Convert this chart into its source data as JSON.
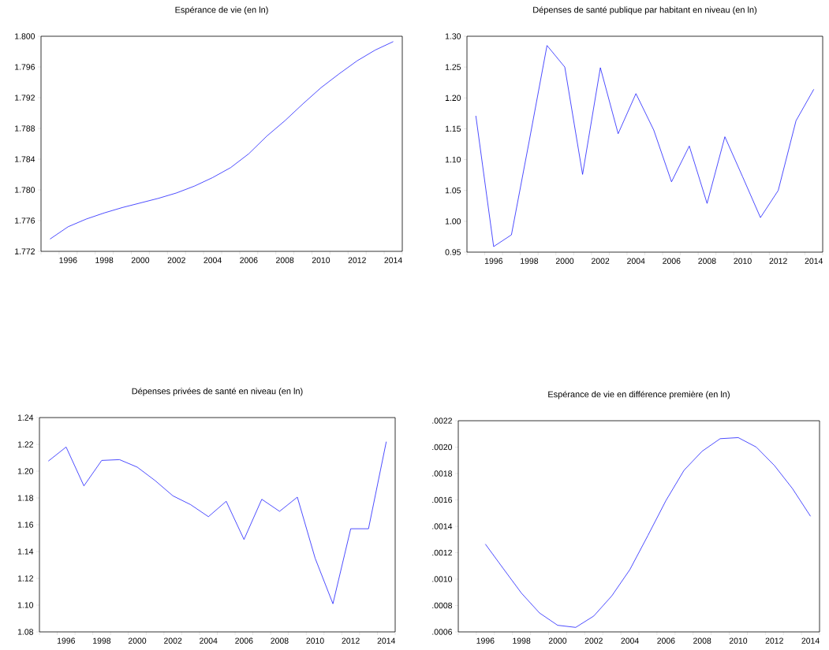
{
  "chart_data": [
    {
      "type": "line",
      "title": "Espérance de vie (en ln)",
      "color": "#0000ff",
      "x": [
        1995,
        1996,
        1997,
        1998,
        1999,
        2000,
        2001,
        2002,
        2003,
        2004,
        2005,
        2006,
        2007,
        2008,
        2009,
        2010,
        2011,
        2012,
        2013,
        2014
      ],
      "values": [
        1.7736,
        1.7752,
        1.7762,
        1.777,
        1.7777,
        1.7783,
        1.7789,
        1.7796,
        1.7805,
        1.7816,
        1.7829,
        1.7847,
        1.787,
        1.789,
        1.7912,
        1.7933,
        1.7951,
        1.7968,
        1.7982,
        1.7993
      ],
      "xlim": [
        1994.5,
        2014.5
      ],
      "ylim": [
        1.772,
        1.8
      ],
      "xticks": [
        1996,
        1998,
        2000,
        2002,
        2004,
        2006,
        2008,
        2010,
        2012,
        2014,
        {
          "value": 1994.5,
          "label": null
        },
        {
          "value": 1995.5,
          "label": null
        },
        {
          "value": 1996.5,
          "label": null
        },
        {
          "value": 1997.5,
          "label": null
        },
        {
          "value": 1998.5,
          "label": null
        },
        {
          "value": 1999.5,
          "label": null
        },
        {
          "value": 2000.5,
          "label": null
        },
        {
          "value": 2001.5,
          "label": null
        },
        {
          "value": 2002.5,
          "label": null
        },
        {
          "value": 2003.5,
          "label": null
        },
        {
          "value": 2004.5,
          "label": null
        },
        {
          "value": 2005.5,
          "label": null
        },
        {
          "value": 2006.5,
          "label": null
        },
        {
          "value": 2007.5,
          "label": null
        },
        {
          "value": 2008.5,
          "label": null
        },
        {
          "value": 2009.5,
          "label": null
        },
        {
          "value": 2010.5,
          "label": null
        },
        {
          "value": 2011.5,
          "label": null
        },
        {
          "value": 2012.5,
          "label": null
        },
        {
          "value": 2013.5,
          "label": null
        },
        {
          "value": 2014.5,
          "label": null
        }
      ],
      "yticks": [
        1.772,
        1.776,
        {
          "value": 1.78,
          "label": "1.780"
        },
        1.784,
        1.788,
        1.792,
        1.796,
        {
          "value": 1.8,
          "label": "1.800"
        }
      ]
    },
    {
      "type": "line",
      "title": "Dépenses de santé publique par habitant en niveau (en ln)",
      "color": "#0000ff",
      "x": [
        1995,
        1996,
        1997,
        1998,
        1999,
        2000,
        2001,
        2002,
        2003,
        2004,
        2005,
        2006,
        2007,
        2008,
        2009,
        2010,
        2011,
        2012,
        2013,
        2014
      ],
      "values": [
        1.171,
        0.959,
        0.978,
        1.13,
        1.285,
        1.25,
        1.076,
        1.249,
        1.142,
        1.207,
        1.148,
        1.064,
        1.122,
        1.029,
        1.137,
        1.072,
        1.006,
        1.05,
        1.163,
        1.214
      ],
      "xlim": [
        1994.5,
        2014.5
      ],
      "ylim": [
        0.95,
        1.3
      ],
      "xticks": [
        1996,
        1998,
        2000,
        2002,
        2004,
        2006,
        2008,
        2010,
        2012,
        2014,
        {
          "value": 1994.5,
          "label": null
        },
        {
          "value": 1995.5,
          "label": null
        },
        {
          "value": 1996.5,
          "label": null
        },
        {
          "value": 1997.5,
          "label": null
        },
        {
          "value": 1998.5,
          "label": null
        },
        {
          "value": 1999.5,
          "label": null
        },
        {
          "value": 2000.5,
          "label": null
        },
        {
          "value": 2001.5,
          "label": null
        },
        {
          "value": 2002.5,
          "label": null
        },
        {
          "value": 2003.5,
          "label": null
        },
        {
          "value": 2004.5,
          "label": null
        },
        {
          "value": 2005.5,
          "label": null
        },
        {
          "value": 2006.5,
          "label": null
        },
        {
          "value": 2007.5,
          "label": null
        },
        {
          "value": 2008.5,
          "label": null
        },
        {
          "value": 2009.5,
          "label": null
        },
        {
          "value": 2010.5,
          "label": null
        },
        {
          "value": 2011.5,
          "label": null
        },
        {
          "value": 2012.5,
          "label": null
        },
        {
          "value": 2013.5,
          "label": null
        },
        {
          "value": 2014.5,
          "label": null
        }
      ],
      "yticks": [
        0.95,
        {
          "value": 1.0,
          "label": "1.00"
        },
        1.05,
        {
          "value": 1.1,
          "label": "1.10"
        },
        1.15,
        {
          "value": 1.2,
          "label": "1.20"
        },
        1.25,
        {
          "value": 1.3,
          "label": "1.30"
        }
      ]
    },
    {
      "type": "line",
      "title": "Dépenses privées de santé en niveau (en ln)",
      "color": "#0000ff",
      "x": [
        1995,
        1996,
        1997,
        1998,
        1999,
        2000,
        2001,
        2002,
        2003,
        2004,
        2005,
        2006,
        2007,
        2008,
        2009,
        2010,
        2011,
        2012,
        2013,
        2014
      ],
      "values": [
        1.2075,
        1.218,
        1.189,
        1.208,
        1.2086,
        1.203,
        1.193,
        1.1816,
        1.175,
        1.166,
        1.1775,
        1.149,
        1.179,
        1.17,
        1.1806,
        1.135,
        1.101,
        1.157,
        1.157,
        1.222
      ],
      "xlim": [
        1994.5,
        2014.5
      ],
      "ylim": [
        1.08,
        1.24
      ],
      "xticks": [
        1996,
        1998,
        2000,
        2002,
        2004,
        2006,
        2008,
        2010,
        2012,
        2014,
        {
          "value": 1994.5,
          "label": null
        },
        {
          "value": 1995.5,
          "label": null
        },
        {
          "value": 1996.5,
          "label": null
        },
        {
          "value": 1997.5,
          "label": null
        },
        {
          "value": 1998.5,
          "label": null
        },
        {
          "value": 1999.5,
          "label": null
        },
        {
          "value": 2000.5,
          "label": null
        },
        {
          "value": 2001.5,
          "label": null
        },
        {
          "value": 2002.5,
          "label": null
        },
        {
          "value": 2003.5,
          "label": null
        },
        {
          "value": 2004.5,
          "label": null
        },
        {
          "value": 2005.5,
          "label": null
        },
        {
          "value": 2006.5,
          "label": null
        },
        {
          "value": 2007.5,
          "label": null
        },
        {
          "value": 2008.5,
          "label": null
        },
        {
          "value": 2009.5,
          "label": null
        },
        {
          "value": 2010.5,
          "label": null
        },
        {
          "value": 2011.5,
          "label": null
        },
        {
          "value": 2012.5,
          "label": null
        },
        {
          "value": 2013.5,
          "label": null
        },
        {
          "value": 2014.5,
          "label": null
        }
      ],
      "yticks": [
        1.08,
        {
          "value": 1.1,
          "label": "1.10"
        },
        1.12,
        1.14,
        1.16,
        1.18,
        {
          "value": 1.2,
          "label": "1.20"
        },
        1.22,
        1.24
      ]
    },
    {
      "type": "line",
      "title": "Espérance de vie en différence première (en ln)",
      "color": "#0000ff",
      "x": [
        1996,
        1997,
        1998,
        1999,
        2000,
        2001,
        2002,
        2003,
        2004,
        2005,
        2006,
        2007,
        2008,
        2009,
        2010,
        2011,
        2012,
        2013,
        2014
      ],
      "values": [
        0.001265,
        0.001078,
        0.000893,
        0.000743,
        0.00065,
        0.000634,
        0.00072,
        0.000873,
        0.001072,
        0.001331,
        0.001596,
        0.001825,
        0.001969,
        0.002064,
        0.002072,
        0.002,
        0.001861,
        0.001686,
        0.001476
      ],
      "xlim": [
        1994.5,
        2014.5
      ],
      "ylim": [
        0.0006,
        0.0022
      ],
      "xticks": [
        1996,
        1998,
        2000,
        2002,
        2004,
        2006,
        2008,
        2010,
        2012,
        2014,
        {
          "value": 1994.5,
          "label": null
        },
        {
          "value": 1995.5,
          "label": null
        },
        {
          "value": 1996.5,
          "label": null
        },
        {
          "value": 1997.5,
          "label": null
        },
        {
          "value": 1998.5,
          "label": null
        },
        {
          "value": 1999.5,
          "label": null
        },
        {
          "value": 2000.5,
          "label": null
        },
        {
          "value": 2001.5,
          "label": null
        },
        {
          "value": 2002.5,
          "label": null
        },
        {
          "value": 2003.5,
          "label": null
        },
        {
          "value": 2004.5,
          "label": null
        },
        {
          "value": 2005.5,
          "label": null
        },
        {
          "value": 2006.5,
          "label": null
        },
        {
          "value": 2007.5,
          "label": null
        },
        {
          "value": 2008.5,
          "label": null
        },
        {
          "value": 2009.5,
          "label": null
        },
        {
          "value": 2010.5,
          "label": null
        },
        {
          "value": 2011.5,
          "label": null
        },
        {
          "value": 2012.5,
          "label": null
        },
        {
          "value": 2013.5,
          "label": null
        },
        {
          "value": 2014.5,
          "label": null
        }
      ],
      "yticks": [
        {
          "value": 0.0006,
          "label": ".0006"
        },
        {
          "value": 0.0008,
          "label": ".0008"
        },
        {
          "value": 0.001,
          "label": ".0010"
        },
        {
          "value": 0.0012,
          "label": ".0012"
        },
        {
          "value": 0.0014,
          "label": ".0014"
        },
        {
          "value": 0.0016,
          "label": ".0016"
        },
        {
          "value": 0.0018,
          "label": ".0018"
        },
        {
          "value": 0.002,
          "label": ".0020"
        },
        {
          "value": 0.0022,
          "label": ".0022"
        }
      ]
    }
  ]
}
